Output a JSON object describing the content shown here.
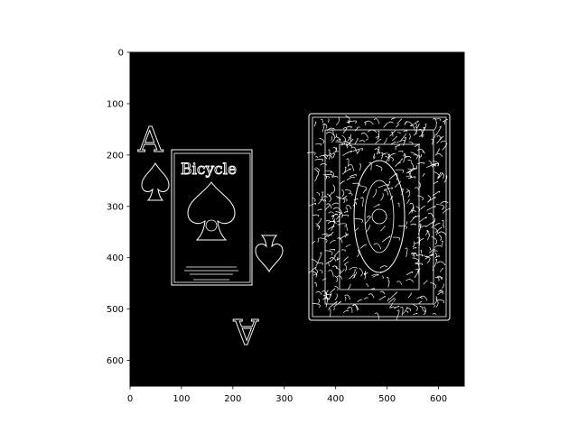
{
  "chart_data": {
    "type": "image",
    "title": "",
    "xlabel": "",
    "ylabel": "",
    "xlim": [
      0,
      650
    ],
    "ylim": [
      650,
      0
    ],
    "xticks": [
      0,
      100,
      200,
      300,
      400,
      500,
      600
    ],
    "yticks": [
      0,
      100,
      200,
      300,
      400,
      500,
      600
    ],
    "grid": false,
    "background": "#000000",
    "edge_color": "#ffffff",
    "image_content": {
      "description_type": "edge-detected playing cards",
      "rank_glyph_top": "A",
      "rank_glyph_bottom": "A",
      "brand_text": "Bicycle"
    }
  }
}
